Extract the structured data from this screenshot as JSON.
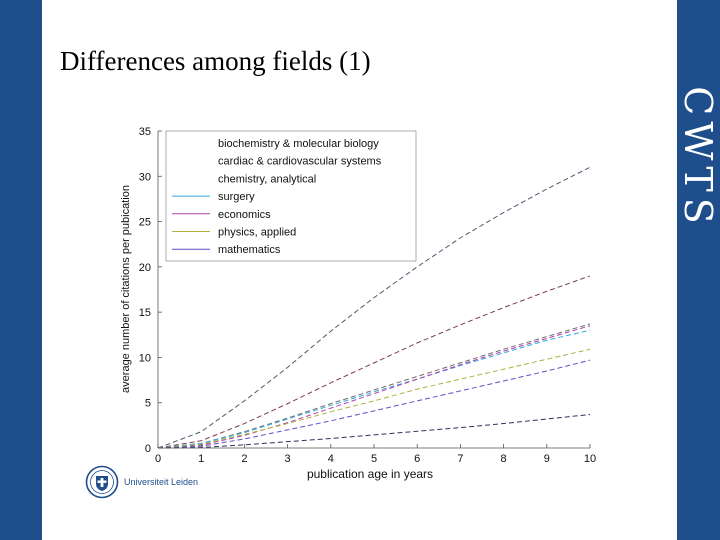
{
  "slide": {
    "title": "Differences among fields (1)",
    "brand_text": "CWTS",
    "logo_text": "Universiteit Leiden",
    "colors": {
      "band": "#1f4e8c"
    }
  },
  "chart_data": {
    "type": "line",
    "xlabel": "publication age in years",
    "ylabel": "average number of citations per pubication",
    "xlim": [
      0,
      10
    ],
    "ylim": [
      0,
      35
    ],
    "x_ticks": [
      0,
      1,
      2,
      3,
      4,
      5,
      6,
      7,
      8,
      9,
      10
    ],
    "y_ticks": [
      0,
      5,
      10,
      15,
      20,
      25,
      30,
      35
    ],
    "grid": false,
    "legend_position": "upper-left",
    "x": [
      0,
      1,
      2,
      3,
      4,
      5,
      6,
      7,
      8,
      9,
      10
    ],
    "series": [
      {
        "name": "biochemistry & molecular biology",
        "color": "#555570",
        "values": [
          0,
          1.8,
          5.2,
          8.9,
          12.9,
          16.6,
          20.0,
          23.2,
          26.0,
          28.6,
          31.0
        ]
      },
      {
        "name": "cardiac & cardiovascular systems",
        "color": "#7a3a5a",
        "values": [
          0,
          0.8,
          2.7,
          4.9,
          7.2,
          9.4,
          11.6,
          13.6,
          15.5,
          17.3,
          19.0
        ]
      },
      {
        "name": "chemistry, analytical",
        "color": "#6f6f6f",
        "values": [
          0,
          0.5,
          1.8,
          3.3,
          4.9,
          6.4,
          7.9,
          9.4,
          10.9,
          12.3,
          13.7
        ]
      },
      {
        "name": "surgery",
        "color": "#33aadd",
        "values": [
          0,
          0.5,
          1.7,
          3.2,
          4.7,
          6.2,
          7.6,
          9.1,
          10.5,
          11.9,
          13.0
        ]
      },
      {
        "name": "economics",
        "color": "#b040b0",
        "values": [
          0,
          0.3,
          1.4,
          2.8,
          4.4,
          6.0,
          7.6,
          9.2,
          10.7,
          12.1,
          13.5
        ]
      },
      {
        "name": "physics, applied",
        "color": "#b0b040",
        "values": [
          0,
          0.4,
          1.5,
          2.7,
          4.0,
          5.2,
          6.5,
          7.6,
          8.7,
          9.8,
          10.9
        ]
      },
      {
        "name": "mathematics",
        "color": "#5a50c8",
        "values": [
          0,
          0.2,
          1.0,
          2.0,
          3.0,
          4.1,
          5.2,
          6.3,
          7.4,
          8.5,
          9.7
        ]
      },
      {
        "color": "#303060",
        "values": [
          0,
          0.05,
          0.35,
          0.7,
          1.05,
          1.45,
          1.85,
          2.25,
          2.7,
          3.2,
          3.7
        ]
      }
    ]
  }
}
